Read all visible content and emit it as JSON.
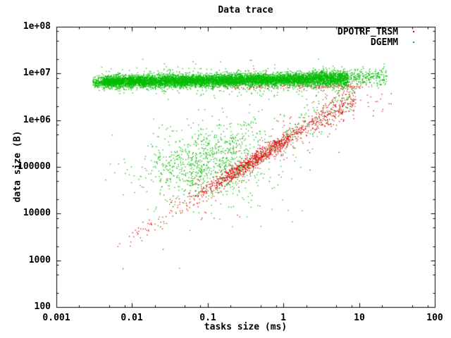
{
  "chart_data": {
    "type": "scatter",
    "title": "Data trace",
    "xlabel": "tasks size (ms)",
    "ylabel": "data size (B)",
    "xscale": "log",
    "yscale": "log",
    "xlim": [
      0.001,
      100
    ],
    "ylim": [
      100,
      100000000
    ],
    "x_ticks": [
      0.001,
      0.01,
      0.1,
      1,
      10,
      100
    ],
    "x_tick_labels": [
      "0.001",
      "0.01",
      "0.1",
      "1",
      "10",
      "100"
    ],
    "y_ticks": [
      100,
      1000,
      10000,
      100000,
      1000000,
      10000000,
      100000000
    ],
    "y_tick_labels": [
      "100",
      "1000",
      "10000",
      "100000",
      "1e+06",
      "1e+07",
      "1e+08"
    ],
    "minor_tick_multiples": [
      2,
      5,
      8
    ],
    "grid": false,
    "legend_position": "top-right-inside",
    "marker": "dot",
    "point_size": 1.3,
    "colors": {
      "foreground": "#000000",
      "background": "#ffffff"
    },
    "representation": "cluster-model of ~11500 dots, coordinates in log10(x[ms]), log10(y[B])",
    "series": [
      {
        "name": "DPOTRF_TRSM",
        "color": "#e00000",
        "clusters": [
          {
            "type": "line",
            "n": 60,
            "x0": -2.2,
            "x1": -1.15,
            "m": 1.03,
            "b": 5.56,
            "y_sd": 0.12
          },
          {
            "type": "line",
            "n": 950,
            "x0": -1.15,
            "x1": 0.4,
            "m": 1.03,
            "b": 5.56,
            "y_sd": 0.085,
            "xdist": "gauss",
            "cx": -0.35,
            "sx": 0.4
          },
          {
            "type": "line",
            "n": 200,
            "x0": 0.4,
            "x1": 0.95,
            "m": 1.0,
            "b": 5.55,
            "y_sd": 0.16
          },
          {
            "type": "line",
            "n": 170,
            "x0": -1.6,
            "x1": 0.8,
            "m": 1.0,
            "b": 5.56,
            "y_sd": 0.33
          },
          {
            "type": "band",
            "n": 120,
            "x0": -0.95,
            "x1": 1.05,
            "y_mean": 6.72,
            "y_sd": 0.03
          },
          {
            "type": "band",
            "n": 60,
            "x0": -1.6,
            "x1": 1.15,
            "y_mean": 6.88,
            "y_sd": 0.09
          },
          {
            "type": "gauss",
            "n": 28,
            "cx": 1.0,
            "cy": 6.4,
            "sx": 0.22,
            "sy": 0.14
          },
          {
            "type": "points",
            "pts": [
              [
                -2.125,
                2.83
              ],
              [
                1.39,
                6.36
              ],
              [
                1.3,
                6.2
              ],
              [
                1.18,
                6.1
              ]
            ]
          }
        ]
      },
      {
        "name": "DGEMM",
        "color": "#00bb00",
        "clusters": [
          {
            "type": "band",
            "n": 250,
            "x0": -2.52,
            "x1": -2.3,
            "y_mean": 6.82,
            "y_sd": 0.05
          },
          {
            "type": "band",
            "n": 6800,
            "x0": -2.38,
            "x1": 0.35,
            "y_mean": 6.83,
            "y_sd": 0.065,
            "slope": 0.02
          },
          {
            "type": "band",
            "n": 1100,
            "x0": 0.35,
            "x1": 0.85,
            "y_mean": 6.9,
            "y_sd": 0.085
          },
          {
            "type": "band",
            "n": 220,
            "x0": 0.85,
            "x1": 1.36,
            "y_mean": 6.93,
            "y_sd": 0.1
          },
          {
            "type": "band",
            "n": 500,
            "x0": -2.45,
            "x1": 0.9,
            "y_mean": 6.85,
            "y_sd": 0.16
          },
          {
            "type": "gauss",
            "n": 950,
            "cx": -0.98,
            "cy": 5.15,
            "sx": 0.45,
            "sy": 0.4,
            "corr": 0.3
          },
          {
            "type": "line",
            "n": 130,
            "x0": 0.0,
            "x1": 0.95,
            "m": 1.0,
            "b": 5.7,
            "y_sd": 0.22
          },
          {
            "type": "band",
            "n": 40,
            "x0": -1.7,
            "x1": 0.3,
            "y_mean": 4.25,
            "y_sd": 0.3
          },
          {
            "type": "points",
            "pts": [
              [
                -1.38,
                2.84
              ],
              [
                -0.42,
                4.4
              ]
            ]
          }
        ]
      }
    ]
  }
}
